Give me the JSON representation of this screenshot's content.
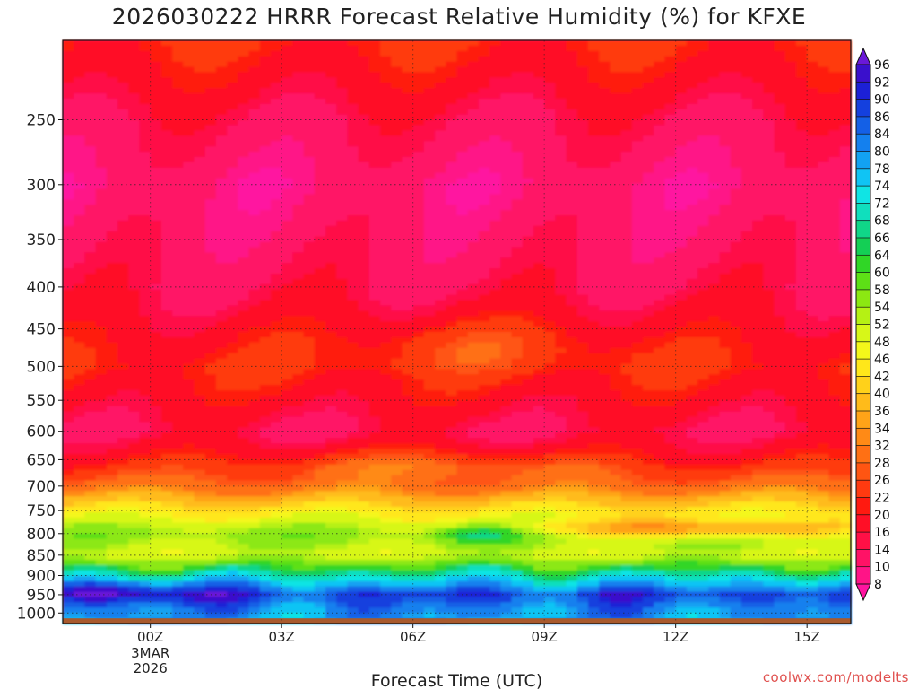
{
  "title": "2026030222 HRRR Forecast Relative Humidity (%) for KFXE",
  "watermark": "coolwx.com/modelts",
  "colors": {
    "ground": "#a85a2e",
    "background_fill": "#ff1f78",
    "grid": "#222222"
  },
  "chart_data": {
    "type": "heatmap",
    "title": "2026030222 HRRR Forecast Relative Humidity (%) for KFXE",
    "xlabel": "Forecast Time (UTC)",
    "ylabel": "",
    "x_range_hours_since_start": [
      0,
      18
    ],
    "x_ticks": [
      {
        "hour": 2,
        "label": "00Z",
        "sub": [
          "3MAR",
          "2026"
        ]
      },
      {
        "hour": 5,
        "label": "03Z"
      },
      {
        "hour": 8,
        "label": "06Z"
      },
      {
        "hour": 11,
        "label": "09Z"
      },
      {
        "hour": 14,
        "label": "12Z"
      },
      {
        "hour": 17,
        "label": "15Z"
      }
    ],
    "y_axis": "pressure (hPa), log scale, inverted",
    "y_range": [
      1030,
      200
    ],
    "y_ticks": [
      250,
      300,
      350,
      400,
      450,
      500,
      550,
      600,
      650,
      700,
      750,
      800,
      850,
      900,
      950,
      1000
    ],
    "grid": true,
    "colorbar": {
      "levels": [
        8,
        10,
        14,
        16,
        20,
        22,
        26,
        28,
        32,
        34,
        36,
        40,
        42,
        46,
        48,
        52,
        54,
        58,
        60,
        64,
        66,
        68,
        72,
        74,
        78,
        80,
        84,
        86,
        90,
        92,
        96
      ],
      "colors": [
        "#ff14a0",
        "#ff1487",
        "#ff1266",
        "#ff1046",
        "#ff0f26",
        "#ff1a10",
        "#ff3a10",
        "#ff5512",
        "#ff7014",
        "#ff8a16",
        "#ffa318",
        "#ffbb1a",
        "#ffd11a",
        "#ffe71a",
        "#f4f71a",
        "#d7f718",
        "#b5f114",
        "#8ce812",
        "#5de016",
        "#30d626",
        "#14cf55",
        "#10d688",
        "#10dfbd",
        "#10e4e4",
        "#10c4f4",
        "#12a2f2",
        "#1480ee",
        "#1460e6",
        "#1440de",
        "#1c20d6",
        "#3a10cc",
        "#6a18d8"
      ]
    },
    "rh_profile_summary": [
      {
        "pressure": 200,
        "rh": 22
      },
      {
        "pressure": 250,
        "rh": 14
      },
      {
        "pressure": 300,
        "rh": 10
      },
      {
        "pressure": 400,
        "rh": 14
      },
      {
        "pressure": 450,
        "rh": 18
      },
      {
        "pressure": 500,
        "rh": 22
      },
      {
        "pressure": 600,
        "rh": 14
      },
      {
        "pressure": 650,
        "rh": 20
      },
      {
        "pressure": 700,
        "rh": 30
      },
      {
        "pressure": 750,
        "rh": 44
      },
      {
        "pressure": 800,
        "rh": 56
      },
      {
        "pressure": 850,
        "rh": 50
      },
      {
        "pressure": 900,
        "rh": 70
      },
      {
        "pressure": 950,
        "rh": 88
      },
      {
        "pressure": 1000,
        "rh": 80
      }
    ]
  }
}
